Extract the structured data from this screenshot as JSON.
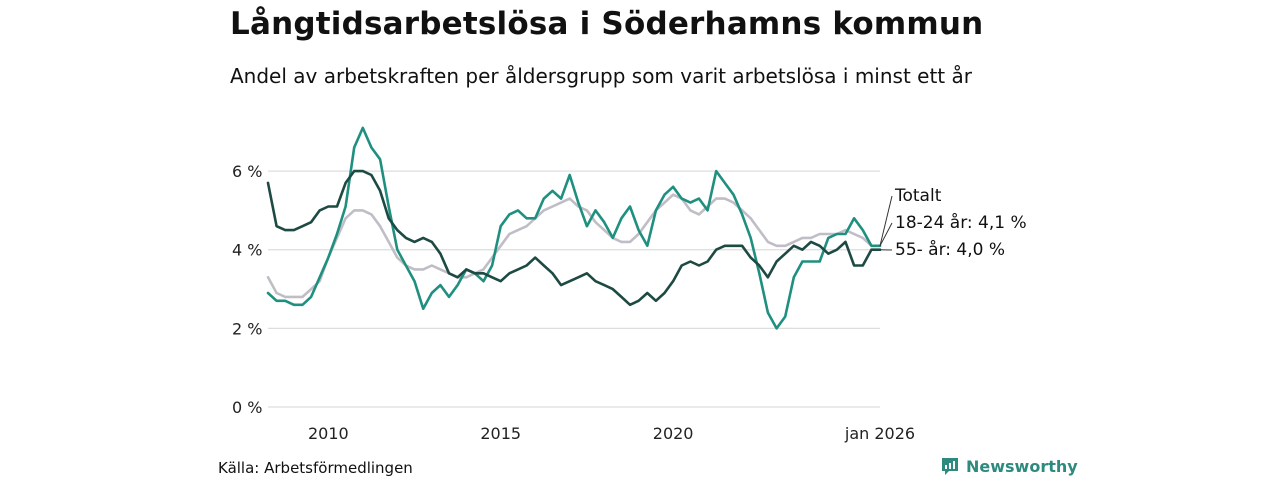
{
  "header": {
    "title": "Långtidsarbetslösa i Söderhamns kommun",
    "subtitle": "Andel av arbetskraften per åldersgrupp som varit arbetslösa i minst ett år"
  },
  "footer": {
    "source": "Källa: Arbetsförmedlingen",
    "brand": "Newsworthy"
  },
  "colors": {
    "totalt": "#c0bdc6",
    "age_18_24": "#1f8f7f",
    "age_55": "#1d4a42",
    "grid": "#dddddd"
  },
  "chart_data": {
    "type": "line",
    "title": "Långtidsarbetslösa i Söderhamns kommun",
    "subtitle": "Andel av arbetskraften per åldersgrupp som varit arbetslösa i minst ett år",
    "xlabel": "",
    "ylabel": "",
    "x_range": [
      2008.25,
      2026.0
    ],
    "ylim": [
      0,
      7.3
    ],
    "y_ticks": [
      0,
      2,
      4,
      6
    ],
    "y_tick_labels": [
      "0 %",
      "2 %",
      "4 %",
      "6 %"
    ],
    "x_ticks": [
      2010,
      2015,
      2020,
      2026
    ],
    "x_tick_labels": [
      "2010",
      "2015",
      "2020",
      "jan 2026"
    ],
    "grid": true,
    "end_labels": [
      "Totalt",
      "18-24 år: 4,1 %",
      "55- år: 4,0 %"
    ],
    "series": [
      {
        "name": "Totalt",
        "color_key": "totalt",
        "points": [
          [
            2008.25,
            3.3
          ],
          [
            2008.5,
            2.9
          ],
          [
            2008.75,
            2.8
          ],
          [
            2009.0,
            2.8
          ],
          [
            2009.25,
            2.8
          ],
          [
            2009.5,
            3.0
          ],
          [
            2009.75,
            3.2
          ],
          [
            2010.0,
            3.8
          ],
          [
            2010.25,
            4.3
          ],
          [
            2010.5,
            4.8
          ],
          [
            2010.75,
            5.0
          ],
          [
            2011.0,
            5.0
          ],
          [
            2011.25,
            4.9
          ],
          [
            2011.5,
            4.6
          ],
          [
            2011.75,
            4.2
          ],
          [
            2012.0,
            3.8
          ],
          [
            2012.25,
            3.6
          ],
          [
            2012.5,
            3.5
          ],
          [
            2012.75,
            3.5
          ],
          [
            2013.0,
            3.6
          ],
          [
            2013.25,
            3.5
          ],
          [
            2013.5,
            3.4
          ],
          [
            2013.75,
            3.3
          ],
          [
            2014.0,
            3.3
          ],
          [
            2014.25,
            3.4
          ],
          [
            2014.5,
            3.5
          ],
          [
            2014.75,
            3.8
          ],
          [
            2015.0,
            4.1
          ],
          [
            2015.25,
            4.4
          ],
          [
            2015.5,
            4.5
          ],
          [
            2015.75,
            4.6
          ],
          [
            2016.0,
            4.8
          ],
          [
            2016.25,
            5.0
          ],
          [
            2016.5,
            5.1
          ],
          [
            2016.75,
            5.2
          ],
          [
            2017.0,
            5.3
          ],
          [
            2017.25,
            5.1
          ],
          [
            2017.5,
            5.0
          ],
          [
            2017.75,
            4.7
          ],
          [
            2018.0,
            4.5
          ],
          [
            2018.25,
            4.3
          ],
          [
            2018.5,
            4.2
          ],
          [
            2018.75,
            4.2
          ],
          [
            2019.0,
            4.4
          ],
          [
            2019.25,
            4.7
          ],
          [
            2019.5,
            5.0
          ],
          [
            2019.75,
            5.2
          ],
          [
            2020.0,
            5.4
          ],
          [
            2020.25,
            5.3
          ],
          [
            2020.5,
            5.0
          ],
          [
            2020.75,
            4.9
          ],
          [
            2021.0,
            5.1
          ],
          [
            2021.25,
            5.3
          ],
          [
            2021.5,
            5.3
          ],
          [
            2021.75,
            5.2
          ],
          [
            2022.0,
            5.0
          ],
          [
            2022.25,
            4.8
          ],
          [
            2022.5,
            4.5
          ],
          [
            2022.75,
            4.2
          ],
          [
            2023.0,
            4.1
          ],
          [
            2023.25,
            4.1
          ],
          [
            2023.5,
            4.2
          ],
          [
            2023.75,
            4.3
          ],
          [
            2024.0,
            4.3
          ],
          [
            2024.25,
            4.4
          ],
          [
            2024.5,
            4.4
          ],
          [
            2024.75,
            4.4
          ],
          [
            2025.0,
            4.5
          ],
          [
            2025.25,
            4.4
          ],
          [
            2025.5,
            4.3
          ],
          [
            2025.75,
            4.1
          ],
          [
            2026.0,
            4.1
          ]
        ]
      },
      {
        "name": "18-24 år",
        "color_key": "age_18_24",
        "points": [
          [
            2008.25,
            2.9
          ],
          [
            2008.5,
            2.7
          ],
          [
            2008.75,
            2.7
          ],
          [
            2009.0,
            2.6
          ],
          [
            2009.25,
            2.6
          ],
          [
            2009.5,
            2.8
          ],
          [
            2009.75,
            3.3
          ],
          [
            2010.0,
            3.8
          ],
          [
            2010.25,
            4.4
          ],
          [
            2010.5,
            5.1
          ],
          [
            2010.75,
            6.6
          ],
          [
            2011.0,
            7.1
          ],
          [
            2011.25,
            6.6
          ],
          [
            2011.5,
            6.3
          ],
          [
            2011.75,
            5.1
          ],
          [
            2012.0,
            4.0
          ],
          [
            2012.25,
            3.6
          ],
          [
            2012.5,
            3.2
          ],
          [
            2012.75,
            2.5
          ],
          [
            2013.0,
            2.9
          ],
          [
            2013.25,
            3.1
          ],
          [
            2013.5,
            2.8
          ],
          [
            2013.75,
            3.1
          ],
          [
            2014.0,
            3.5
          ],
          [
            2014.25,
            3.4
          ],
          [
            2014.5,
            3.2
          ],
          [
            2014.75,
            3.6
          ],
          [
            2015.0,
            4.6
          ],
          [
            2015.25,
            4.9
          ],
          [
            2015.5,
            5.0
          ],
          [
            2015.75,
            4.8
          ],
          [
            2016.0,
            4.8
          ],
          [
            2016.25,
            5.3
          ],
          [
            2016.5,
            5.5
          ],
          [
            2016.75,
            5.3
          ],
          [
            2017.0,
            5.9
          ],
          [
            2017.25,
            5.2
          ],
          [
            2017.5,
            4.6
          ],
          [
            2017.75,
            5.0
          ],
          [
            2018.0,
            4.7
          ],
          [
            2018.25,
            4.3
          ],
          [
            2018.5,
            4.8
          ],
          [
            2018.75,
            5.1
          ],
          [
            2019.0,
            4.5
          ],
          [
            2019.25,
            4.1
          ],
          [
            2019.5,
            5.0
          ],
          [
            2019.75,
            5.4
          ],
          [
            2020.0,
            5.6
          ],
          [
            2020.25,
            5.3
          ],
          [
            2020.5,
            5.2
          ],
          [
            2020.75,
            5.3
          ],
          [
            2021.0,
            5.0
          ],
          [
            2021.25,
            6.0
          ],
          [
            2021.5,
            5.7
          ],
          [
            2021.75,
            5.4
          ],
          [
            2022.0,
            4.9
          ],
          [
            2022.25,
            4.3
          ],
          [
            2022.5,
            3.4
          ],
          [
            2022.75,
            2.4
          ],
          [
            2023.0,
            2.0
          ],
          [
            2023.25,
            2.3
          ],
          [
            2023.5,
            3.3
          ],
          [
            2023.75,
            3.7
          ],
          [
            2024.0,
            3.7
          ],
          [
            2024.25,
            3.7
          ],
          [
            2024.5,
            4.3
          ],
          [
            2024.75,
            4.4
          ],
          [
            2025.0,
            4.4
          ],
          [
            2025.25,
            4.8
          ],
          [
            2025.5,
            4.5
          ],
          [
            2025.75,
            4.1
          ],
          [
            2026.0,
            4.1
          ]
        ]
      },
      {
        "name": "55- år",
        "color_key": "age_55",
        "points": [
          [
            2008.25,
            5.7
          ],
          [
            2008.5,
            4.6
          ],
          [
            2008.75,
            4.5
          ],
          [
            2009.0,
            4.5
          ],
          [
            2009.25,
            4.6
          ],
          [
            2009.5,
            4.7
          ],
          [
            2009.75,
            5.0
          ],
          [
            2010.0,
            5.1
          ],
          [
            2010.25,
            5.1
          ],
          [
            2010.5,
            5.7
          ],
          [
            2010.75,
            6.0
          ],
          [
            2011.0,
            6.0
          ],
          [
            2011.25,
            5.9
          ],
          [
            2011.5,
            5.5
          ],
          [
            2011.75,
            4.8
          ],
          [
            2012.0,
            4.5
          ],
          [
            2012.25,
            4.3
          ],
          [
            2012.5,
            4.2
          ],
          [
            2012.75,
            4.3
          ],
          [
            2013.0,
            4.2
          ],
          [
            2013.25,
            3.9
          ],
          [
            2013.5,
            3.4
          ],
          [
            2013.75,
            3.3
          ],
          [
            2014.0,
            3.5
          ],
          [
            2014.25,
            3.4
          ],
          [
            2014.5,
            3.4
          ],
          [
            2014.75,
            3.3
          ],
          [
            2015.0,
            3.2
          ],
          [
            2015.25,
            3.4
          ],
          [
            2015.5,
            3.5
          ],
          [
            2015.75,
            3.6
          ],
          [
            2016.0,
            3.8
          ],
          [
            2016.25,
            3.6
          ],
          [
            2016.5,
            3.4
          ],
          [
            2016.75,
            3.1
          ],
          [
            2017.0,
            3.2
          ],
          [
            2017.25,
            3.3
          ],
          [
            2017.5,
            3.4
          ],
          [
            2017.75,
            3.2
          ],
          [
            2018.0,
            3.1
          ],
          [
            2018.25,
            3.0
          ],
          [
            2018.5,
            2.8
          ],
          [
            2018.75,
            2.6
          ],
          [
            2019.0,
            2.7
          ],
          [
            2019.25,
            2.9
          ],
          [
            2019.5,
            2.7
          ],
          [
            2019.75,
            2.9
          ],
          [
            2020.0,
            3.2
          ],
          [
            2020.25,
            3.6
          ],
          [
            2020.5,
            3.7
          ],
          [
            2020.75,
            3.6
          ],
          [
            2021.0,
            3.7
          ],
          [
            2021.25,
            4.0
          ],
          [
            2021.5,
            4.1
          ],
          [
            2021.75,
            4.1
          ],
          [
            2022.0,
            4.1
          ],
          [
            2022.25,
            3.8
          ],
          [
            2022.5,
            3.6
          ],
          [
            2022.75,
            3.3
          ],
          [
            2023.0,
            3.7
          ],
          [
            2023.25,
            3.9
          ],
          [
            2023.5,
            4.1
          ],
          [
            2023.75,
            4.0
          ],
          [
            2024.0,
            4.2
          ],
          [
            2024.25,
            4.1
          ],
          [
            2024.5,
            3.9
          ],
          [
            2024.75,
            4.0
          ],
          [
            2025.0,
            4.2
          ],
          [
            2025.25,
            3.6
          ],
          [
            2025.5,
            3.6
          ],
          [
            2025.75,
            4.0
          ],
          [
            2026.0,
            4.0
          ]
        ]
      }
    ]
  }
}
